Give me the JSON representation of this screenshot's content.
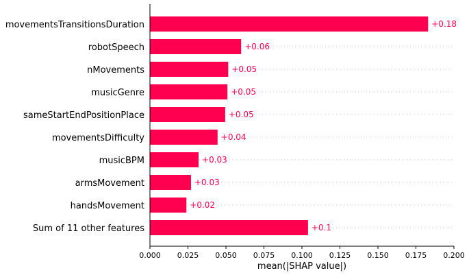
{
  "colors": {
    "bar": "#ff0051",
    "axis": "#000000",
    "grid": "#cccccc"
  },
  "chart_data": {
    "type": "bar",
    "orientation": "horizontal",
    "categories": [
      "movementsTransitionsDuration",
      "robotSpeech",
      "nMovements",
      "musicGenre",
      "sameStartEndPositionPlace",
      "movementsDifficulty",
      "musicBPM",
      "armsMovement",
      "handsMovement",
      "Sum of 11 other features"
    ],
    "values": [
      0.183,
      0.06,
      0.0515,
      0.051,
      0.0495,
      0.0445,
      0.032,
      0.027,
      0.024,
      0.104
    ],
    "value_labels": [
      "+0.18",
      "+0.06",
      "+0.05",
      "+0.05",
      "+0.05",
      "+0.04",
      "+0.03",
      "+0.03",
      "+0.02",
      "+0.1"
    ],
    "xlabel": "mean(|SHAP value|)",
    "xlim": [
      0,
      0.2
    ],
    "xticks": [
      "0.000",
      "0.025",
      "0.050",
      "0.075",
      "0.100",
      "0.125",
      "0.150",
      "0.175",
      "0.200"
    ],
    "grid": "dotted horizontal lines per row",
    "legend": "none"
  }
}
